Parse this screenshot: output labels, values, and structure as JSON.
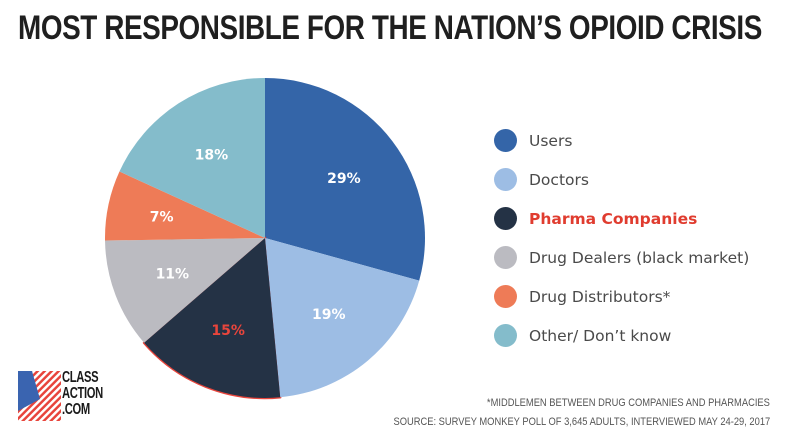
{
  "title": "MOST RESPONSIBLE FOR THE NATION’S OPIOID CRISIS",
  "chart_data": {
    "type": "pie",
    "title": "MOST RESPONSIBLE FOR THE NATION’S OPIOID CRISIS",
    "start_angle": "top, clockwise",
    "slices": [
      {
        "label": "Users",
        "value": 29,
        "display": "29%",
        "color": "#3465a8",
        "label_color": "#ffffff",
        "highlight": false
      },
      {
        "label": "Doctors",
        "value": 19,
        "display": "19%",
        "color": "#9dbde4",
        "label_color": "#ffffff",
        "highlight": false
      },
      {
        "label": "Pharma Companies",
        "value": 15,
        "display": "15%",
        "color": "#243245",
        "label_color": "#e8453c",
        "highlight": true
      },
      {
        "label": "Drug Dealers (black market)",
        "value": 11,
        "display": "11%",
        "color": "#bbbbc1",
        "label_color": "#ffffff",
        "highlight": false
      },
      {
        "label": "Drug Distributors*",
        "value": 7,
        "display": "7%",
        "color": "#ee7b57",
        "label_color": "#ffffff",
        "highlight": false
      },
      {
        "label": "Other/ Don’t know",
        "value": 18,
        "display": "18%",
        "color": "#84bccb",
        "label_color": "#ffffff",
        "highlight": false
      }
    ],
    "highlight_outline_color": "#e8453c",
    "legend_position": "right"
  },
  "footnotes": {
    "asterisk": "*MIDDLEMEN BETWEEN DRUG COMPANIES AND PHARMACIES",
    "source": "SOURCE: SURVEY MONKEY POLL OF 3,645 ADULTS, INTERVIEWED MAY 24-29, 2017"
  },
  "logo": {
    "lines": [
      "CLASS",
      "ACTION",
      ".COM"
    ],
    "colors": {
      "blue": "#3a64b0",
      "red": "#e8453c"
    }
  }
}
